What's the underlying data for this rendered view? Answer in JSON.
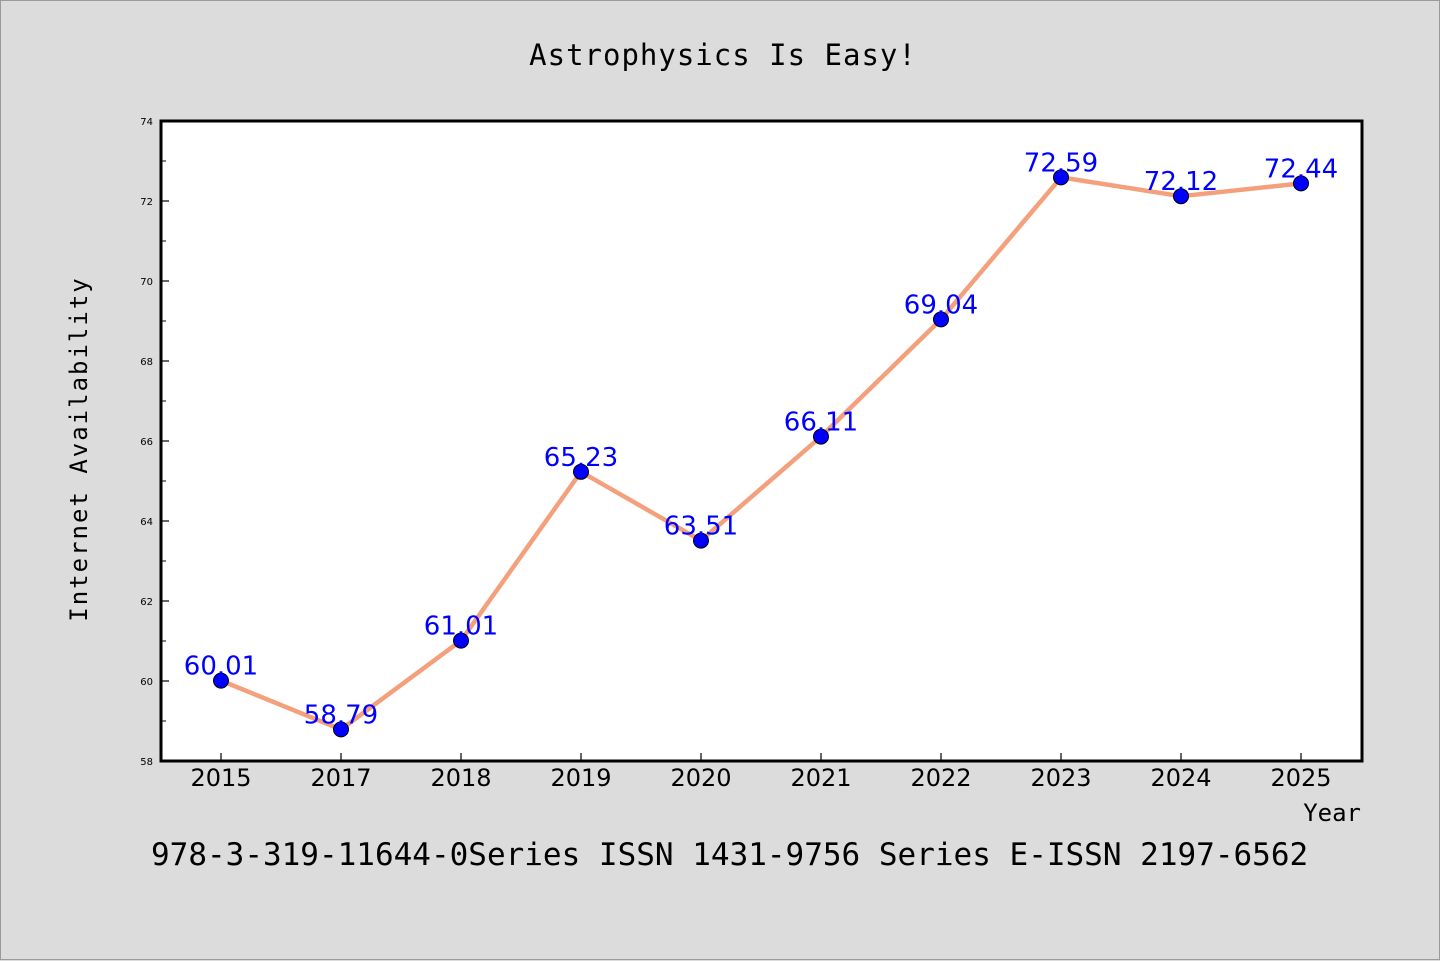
{
  "chart_data": {
    "type": "line",
    "title": "Astrophysics Is Easy!",
    "xlabel": "Year",
    "ylabel": "Internet Availability",
    "categories": [
      "2015",
      "2017",
      "2018",
      "2019",
      "2020",
      "2021",
      "2022",
      "2023",
      "2024",
      "2025"
    ],
    "series": [
      {
        "values": [
          60.01,
          58.79,
          61.01,
          65.23,
          63.51,
          66.11,
          69.04,
          72.59,
          72.12,
          72.44
        ],
        "line_color": "#f4a07c",
        "marker_color": "#0000ff"
      }
    ],
    "ylim": [
      58,
      74
    ],
    "y_ticks": [
      58,
      60,
      62,
      64,
      66,
      68,
      70,
      72,
      74
    ],
    "grid": false,
    "legend": "none",
    "data_labels": true
  },
  "footer": {
    "text": "978-3-319-11644-0Series ISSN 1431-9756 Series E-ISSN 2197-6562"
  },
  "colors": {
    "background": "#dcdcdc",
    "plot_background": "#ffffff",
    "line": "#f4a07c",
    "marker": "#0000ff",
    "data_label": "#0000ff"
  }
}
